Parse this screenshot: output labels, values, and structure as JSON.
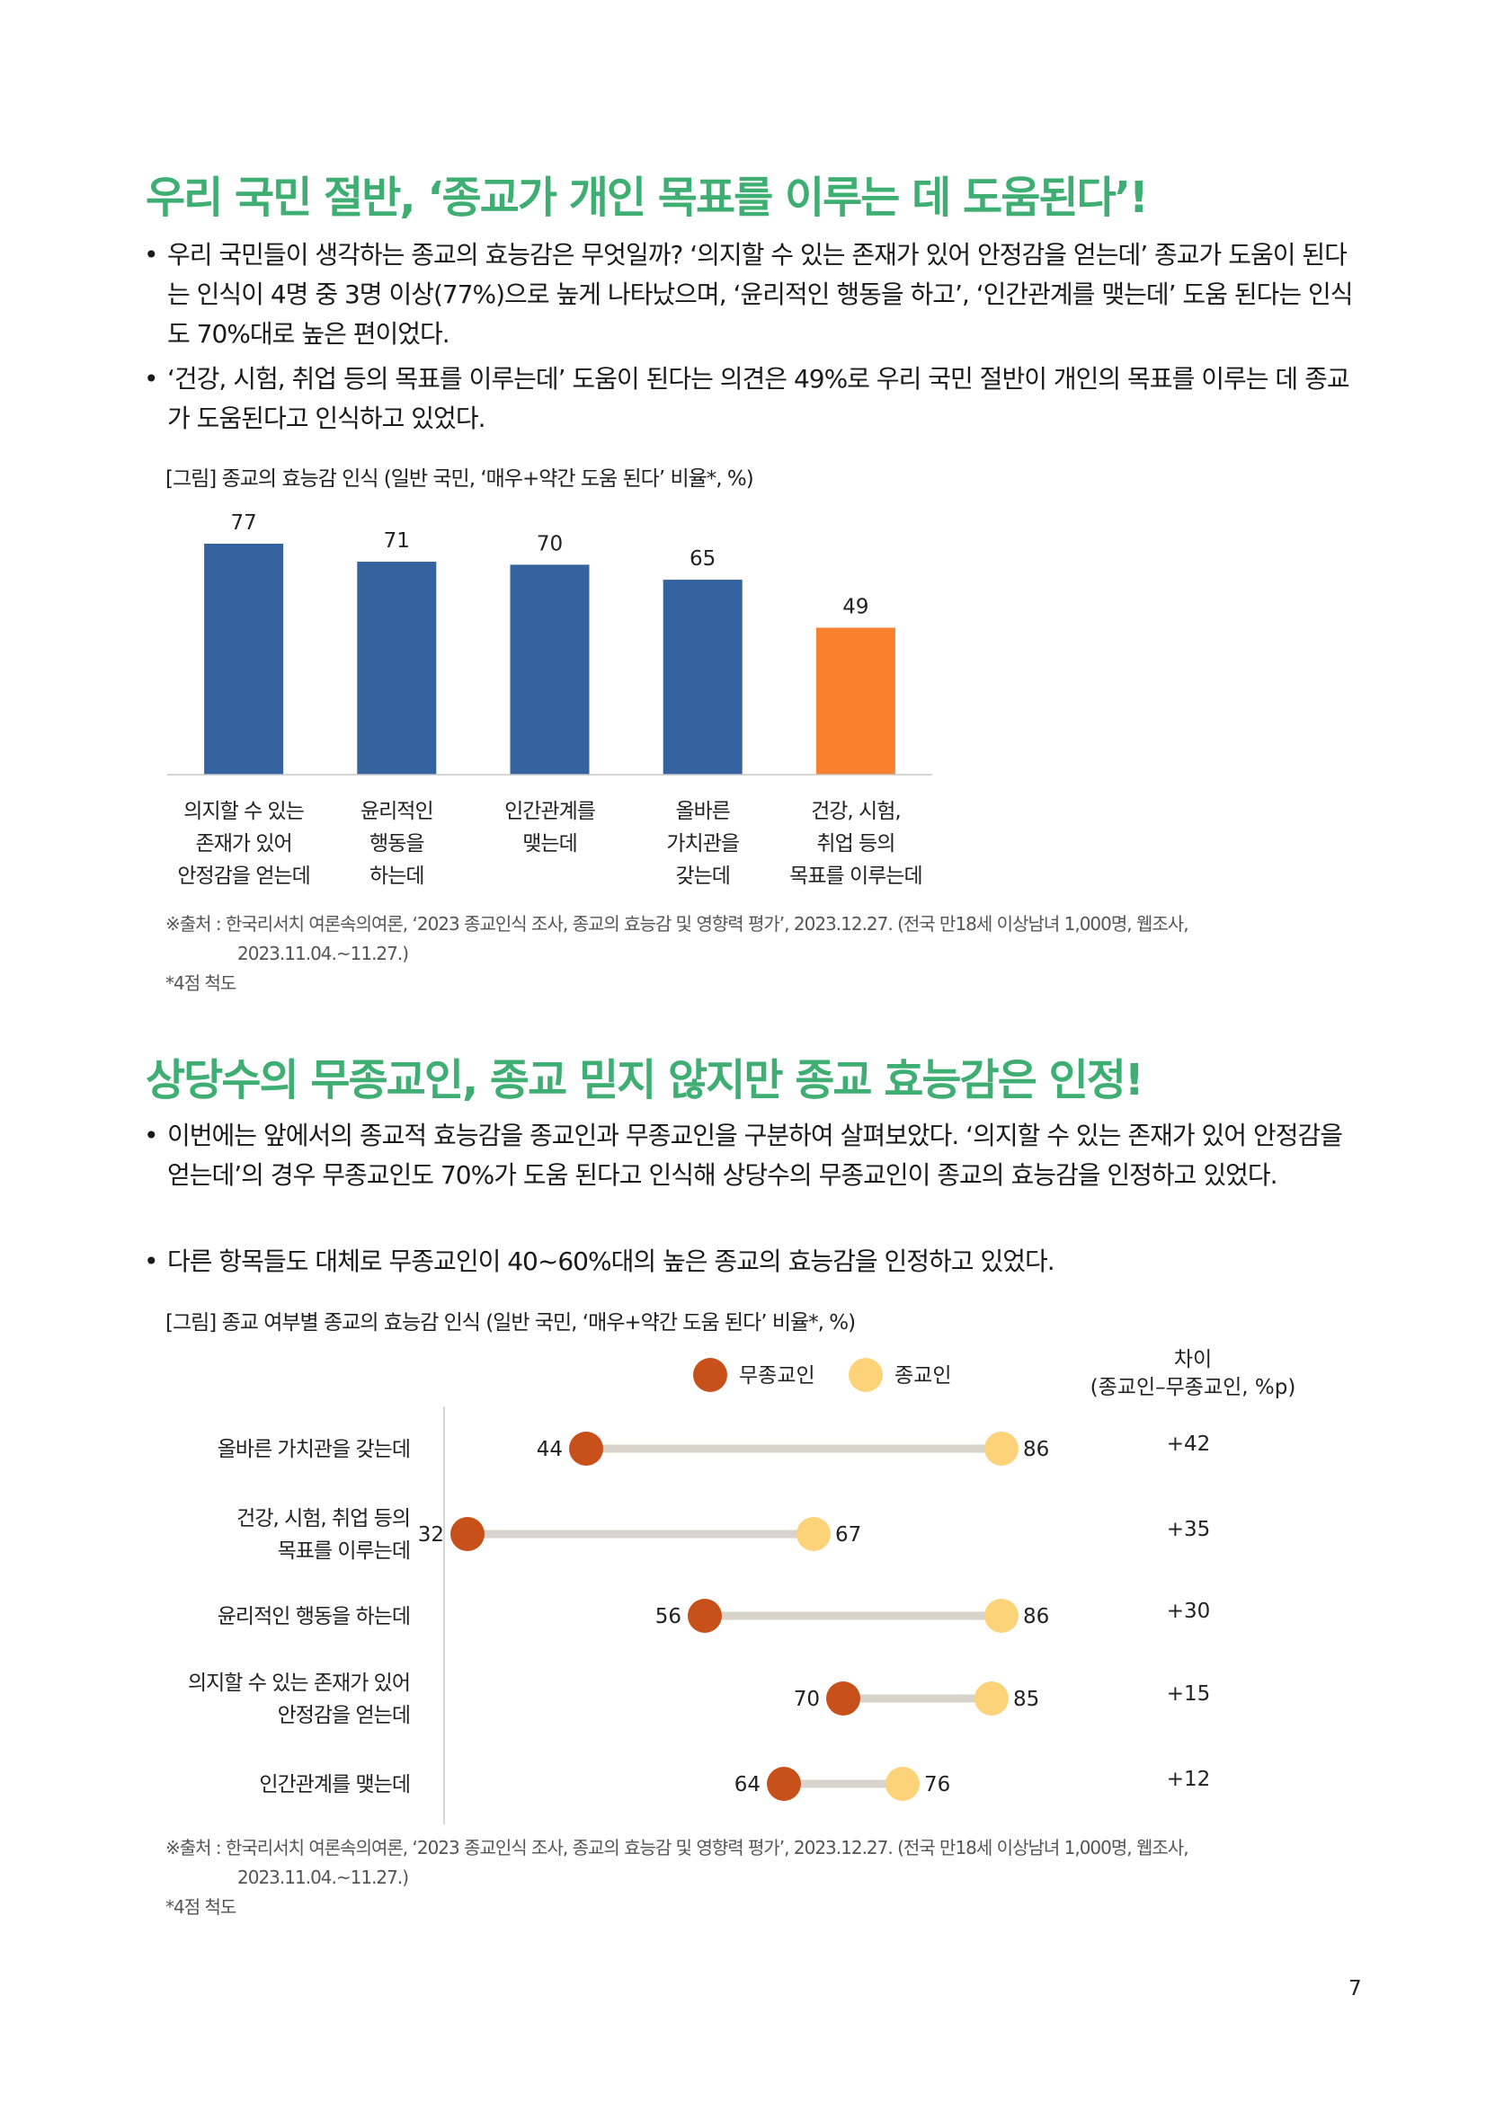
{
  "section1": {
    "title": "우리 국민 절반, ‘종교가 개인 목표를 이루는 데 도움된다’!",
    "bullets": [
      "우리 국민들이 생각하는 종교의 효능감은 무엇일까? ‘의지할 수 있는 존재가 있어 안정감을 얻는데’ 종교가 도움이 된다는 인식이 4명 중 3명 이상(77%)으로 높게 나타났으며, ‘윤리적인 행동을 하고’, ‘인간관계를 맺는데’ 도움 된다는 인식도 70%대로 높은 편이었다.",
      "‘건강, 시험, 취업 등의 목표를 이루는데’ 도움이 된다는 의견은 49%로 우리 국민 절반이 개인의 목표를 이루는 데 종교가 도움된다고 인식하고 있었다."
    ],
    "figure_caption": "[그림] 종교의 효능감 인식 (일반 국민, ‘매우+약간 도움 된다’ 비율*, %)",
    "source_line1": "※출처 : 한국리서치 여론속의여론, ‘2023 종교인식 조사, 종교의 효능감 및 영향력 평가’, 2023.12.27. (전국 만18세 이상남녀 1,000명, 웹조사,",
    "source_line2": "2023.11.04.~11.27.)",
    "note": "*4점 척도"
  },
  "section2": {
    "title": "상당수의 무종교인, 종교 믿지 않지만 종교 효능감은 인정!",
    "bullets": [
      "이번에는 앞에서의 종교적 효능감을 종교인과 무종교인을 구분하여 살펴보았다. ‘의지할 수 있는 존재가 있어 안정감을 얻는데’의 경우 무종교인도 70%가 도움 된다고 인식해 상당수의 무종교인이 종교의 효능감을 인정하고 있었다.",
      "다른 항목들도 대체로 무종교인이 40~60%대의 높은 종교의 효능감을 인정하고 있었다."
    ],
    "figure_caption": "[그림] 종교 여부별 종교의 효능감 인식 (일반 국민, ‘매우+약간 도움 된다’ 비율*, %)",
    "source_line1": "※출처 : 한국리서치 여론속의여론, ‘2023 종교인식 조사, 종교의 효능감 및 영향력 평가’, 2023.12.27. (전국 만18세 이상남녀 1,000명, 웹조사,",
    "source_line2": "2023.11.04.~11.27.)",
    "note": "*4점 척도"
  },
  "page_number": "7",
  "colors": {
    "title_green": "#3fae72",
    "bar_blue": "#3563a0",
    "bar_orange": "#f7812f",
    "dot_nonreligious": "#c8501a",
    "dot_religious": "#fdd37a",
    "connector": "#d8d3cb"
  },
  "chart_data": [
    {
      "type": "bar",
      "categories": [
        [
          "의지할 수 있는",
          "존재가 있어",
          "안정감을 얻는데"
        ],
        [
          "윤리적인",
          "행동을",
          "하는데"
        ],
        [
          "인간관계를",
          "맺는데"
        ],
        [
          "올바른",
          "가치관을",
          "갖는데"
        ],
        [
          "건강, 시험,",
          "취업 등의",
          "목표를 이루는데"
        ]
      ],
      "values": [
        77,
        71,
        70,
        65,
        49
      ],
      "highlight_index": 4,
      "ylim": [
        0,
        80
      ],
      "grid": false
    },
    {
      "type": "dumbbell",
      "legend": [
        "무종교인",
        "종교인"
      ],
      "diff_header": [
        "차이",
        "(종교인–무종교인, %p)"
      ],
      "rows": [
        {
          "label": [
            "올바른 가치관을 갖는데"
          ],
          "nonreligious": 44,
          "religious": 86,
          "diff": "+42"
        },
        {
          "label": [
            "건강, 시험, 취업 등의",
            "목표를 이루는데"
          ],
          "nonreligious": 32,
          "religious": 67,
          "diff": "+35"
        },
        {
          "label": [
            "윤리적인 행동을 하는데"
          ],
          "nonreligious": 56,
          "religious": 86,
          "diff": "+30"
        },
        {
          "label": [
            "의지할 수 있는 존재가 있어",
            "안정감을 얻는데"
          ],
          "nonreligious": 70,
          "religious": 85,
          "diff": "+15"
        },
        {
          "label": [
            "인간관계를 맺는데"
          ],
          "nonreligious": 64,
          "religious": 76,
          "diff": "+12"
        }
      ],
      "xlim": [
        20,
        90
      ]
    }
  ]
}
